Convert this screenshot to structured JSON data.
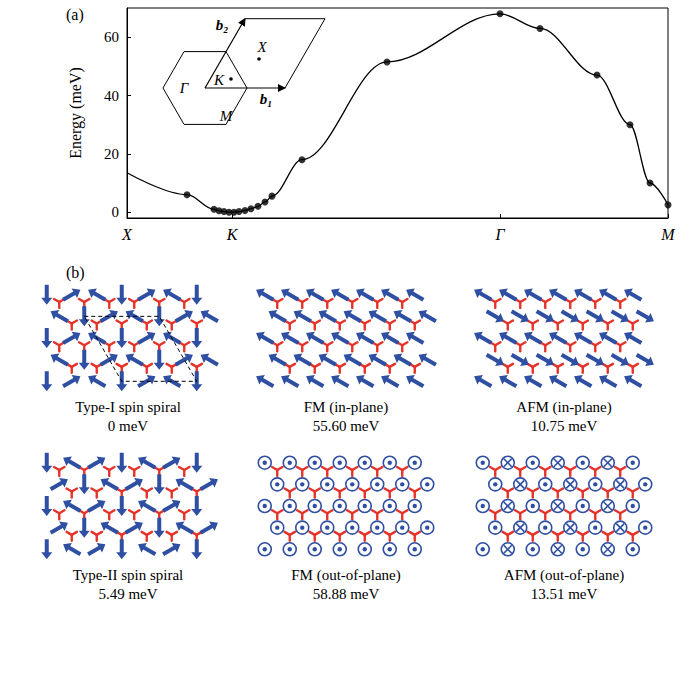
{
  "chart_data": {
    "type": "line",
    "panel": "(a)",
    "ylabel": "Energy (meV)",
    "xlim": [
      0,
      5.41
    ],
    "xticks": [
      {
        "value": 0,
        "label": "X"
      },
      {
        "value": 1.05,
        "label": "K"
      },
      {
        "value": 3.73,
        "label": "Γ"
      },
      {
        "value": 5.41,
        "label": "M"
      }
    ],
    "ylim": [
      -2,
      70
    ],
    "yticks": [
      0,
      20,
      40,
      60
    ],
    "grid": false,
    "series": [
      {
        "type": "line",
        "color": "#000000",
        "marker": "none",
        "line_style": "solid",
        "x": [
          0,
          0.6,
          0.87,
          0.92,
          0.97,
          1.02,
          1.07,
          1.12,
          1.18,
          1.24,
          1.31,
          1.38,
          1.45,
          1.75,
          2.6,
          3.73,
          4.13,
          4.7,
          5.03,
          5.23,
          5.41
        ],
        "values": [
          13.5,
          6,
          1.0,
          0.5,
          0.2,
          0,
          0,
          0.2,
          0.6,
          1.2,
          2.0,
          3.5,
          5.5,
          18,
          51.5,
          68,
          63,
          47,
          30,
          10,
          2.5
        ]
      },
      {
        "type": "scatter",
        "color": "#000000",
        "marker": "circle",
        "x": [
          0.6,
          0.87,
          0.92,
          0.97,
          1.02,
          1.07,
          1.12,
          1.18,
          1.24,
          1.31,
          1.38,
          1.45,
          1.75,
          2.6,
          3.73,
          4.13,
          4.7,
          5.03,
          5.23,
          5.41
        ],
        "values": [
          6,
          1.0,
          0.5,
          0.2,
          0,
          0,
          0.2,
          0.6,
          1.2,
          2.0,
          3.5,
          5.5,
          18,
          51.5,
          68,
          63,
          47,
          30,
          10,
          2.5
        ]
      }
    ],
    "inset": {
      "vectors": [
        "b₁",
        "b₂"
      ],
      "points": [
        "Γ",
        "K",
        "M",
        "X"
      ]
    }
  },
  "spin_configurations": {
    "panel": "(b)",
    "items": [
      {
        "name": "Type-I spin spiral",
        "energy": "0 meV"
      },
      {
        "name": "FM (in-plane)",
        "energy": "55.60 meV"
      },
      {
        "name": "AFM (in-plane)",
        "energy": "10.75 meV"
      },
      {
        "name": "Type-II spin spiral",
        "energy": "5.49 meV"
      },
      {
        "name": "FM (out-of-plane)",
        "energy": "58.88 meV"
      },
      {
        "name": "AFM (out-of-plane)",
        "energy": "13.51 meV"
      }
    ]
  }
}
